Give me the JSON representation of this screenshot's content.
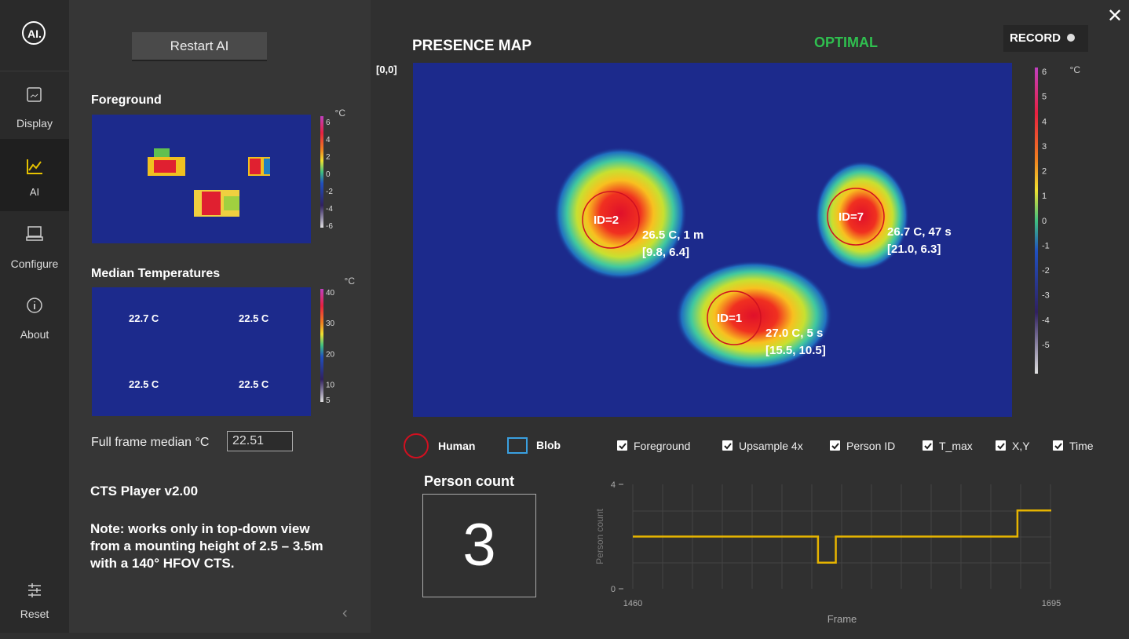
{
  "sidebar": {
    "logo": "AI.",
    "items": [
      "Display",
      "AI",
      "Configure",
      "About"
    ],
    "reset": "Reset"
  },
  "panel": {
    "restart": "Restart AI",
    "foreground": {
      "title": "Foreground",
      "unit": "°C",
      "ticks": [
        6,
        4,
        2,
        0,
        -2,
        -4,
        -6
      ]
    },
    "median": {
      "title": "Median Temperatures",
      "unit": "°C",
      "ticks": [
        40,
        30,
        20,
        10,
        5
      ],
      "values": [
        "22.7 C",
        "22.5 C",
        "22.5 C",
        "22.5 C"
      ]
    },
    "full_frame": {
      "label": "Full frame median °C",
      "value": "22.51"
    },
    "version": "CTS Player v2.00",
    "note": [
      "Note: works only in top-down view",
      "from a mounting height of 2.5 – 3.5m",
      "with a 140° HFOV CTS."
    ]
  },
  "presence_map": {
    "title": "PRESENCE MAP",
    "status": "OPTIMAL",
    "record": "RECORD",
    "origin": "[0,0]",
    "unit": "°C",
    "ticks": [
      6,
      5,
      4,
      3,
      2,
      1,
      0,
      -1,
      -2,
      -3,
      -4,
      -5
    ],
    "persons": [
      {
        "id": "ID=2",
        "temp": "26.5 C, 1 m",
        "pos": "[9.8, 6.4]"
      },
      {
        "id": "ID=7",
        "temp": "26.7 C, 47 s",
        "pos": "[21.0, 6.3]"
      },
      {
        "id": "ID=1",
        "temp": "27.0 C, 5 s",
        "pos": "[15.5, 10.5]"
      }
    ]
  },
  "legend": {
    "human": "Human",
    "blob": "Blob"
  },
  "options": [
    "Foreground",
    "Upsample 4x",
    "Person ID",
    "T_max",
    "X,Y",
    "Time"
  ],
  "person_count": {
    "title": "Person count",
    "value": 3
  },
  "chart_data": {
    "type": "line",
    "x_label": "Frame",
    "y_label": "Person count",
    "x": [
      1460,
      1564,
      1564,
      1574,
      1574,
      1676,
      1676,
      1695
    ],
    "values": [
      2,
      2,
      1,
      1,
      2,
      2,
      3,
      3
    ],
    "xlim": [
      1460,
      1695
    ],
    "ylim": [
      0,
      4
    ],
    "xticks": [
      1460,
      1695
    ],
    "yticks": [
      0,
      4
    ],
    "color": "#e6b400"
  }
}
